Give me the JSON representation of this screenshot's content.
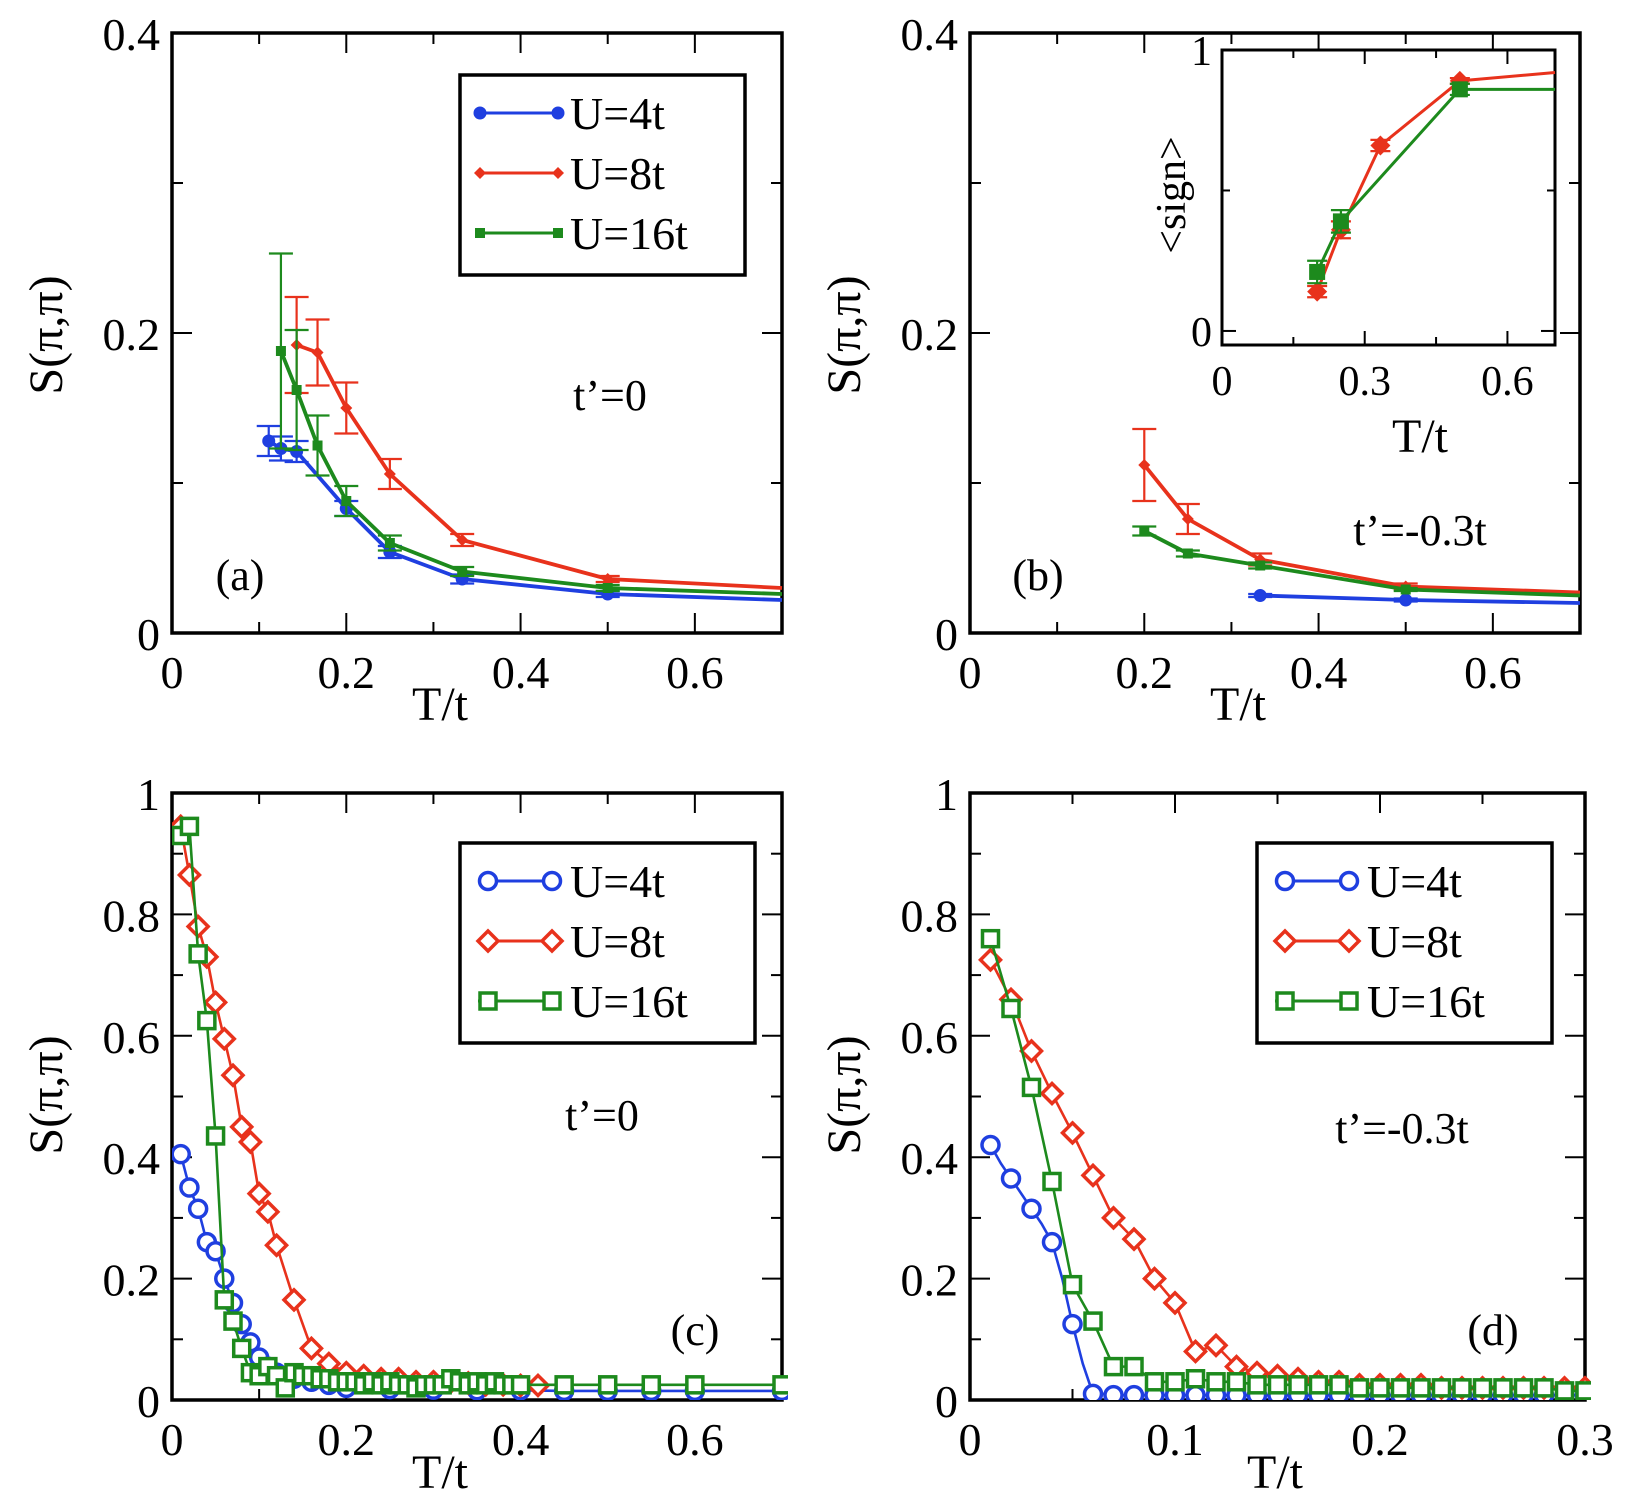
{
  "colors": {
    "blue": "#1f3fe0",
    "red": "#e8321c",
    "green": "#1d8a1d",
    "axis": "#000000"
  },
  "chart_data": [
    {
      "id": "a",
      "type": "line",
      "panel_label": "(a)",
      "annotation": "t’=0",
      "xlabel": "T/t",
      "ylabel": "S(π,π)",
      "xlim": [
        0,
        0.7
      ],
      "ylim": [
        0,
        0.4
      ],
      "xticks": [
        0,
        0.2,
        0.4,
        0.6
      ],
      "xtick_labels": [
        "0",
        "0.2",
        "0.4",
        "0.6"
      ],
      "yticks": [
        0,
        0.2,
        0.4
      ],
      "ytick_labels": [
        "0",
        "0.2",
        "0.4"
      ],
      "yminor": [
        0.1,
        0.3
      ],
      "xminor": [
        0.1,
        0.3,
        0.5
      ],
      "legend": true,
      "series": [
        {
          "name": "U=4t",
          "color": "blue",
          "marker": "dot",
          "x": [
            0.111,
            0.125,
            0.143,
            0.2,
            0.25,
            0.333,
            0.5,
            0.7
          ],
          "y": [
            0.128,
            0.123,
            0.121,
            0.083,
            0.054,
            0.036,
            0.026,
            0.022
          ],
          "err": [
            0.01,
            0.008,
            0.007,
            0.005,
            0.004,
            0.003,
            0.002,
            0
          ]
        },
        {
          "name": "U=8t",
          "color": "red",
          "marker": "diamond-small",
          "x": [
            0.143,
            0.167,
            0.2,
            0.25,
            0.333,
            0.5,
            0.7
          ],
          "y": [
            0.192,
            0.187,
            0.15,
            0.106,
            0.062,
            0.036,
            0.03
          ],
          "err": [
            0.032,
            0.022,
            0.017,
            0.01,
            0.004,
            0.002,
            0
          ]
        },
        {
          "name": "U=16t",
          "color": "green",
          "marker": "square-small",
          "x": [
            0.125,
            0.143,
            0.167,
            0.2,
            0.25,
            0.333,
            0.5,
            0.7
          ],
          "y": [
            0.188,
            0.162,
            0.125,
            0.088,
            0.06,
            0.041,
            0.03,
            0.026
          ],
          "err": [
            0.065,
            0.04,
            0.02,
            0.01,
            0.005,
            0.003,
            0.002,
            0
          ]
        }
      ]
    },
    {
      "id": "b",
      "type": "line",
      "panel_label": "(b)",
      "annotation": "t’=-0.3t",
      "xlabel": "T/t",
      "ylabel": "S(π,π)",
      "xlim": [
        0,
        0.7
      ],
      "ylim": [
        0,
        0.4
      ],
      "xticks": [
        0,
        0.2,
        0.4,
        0.6
      ],
      "xtick_labels": [
        "0",
        "0.2",
        "0.4",
        "0.6"
      ],
      "yticks": [
        0,
        0.2,
        0.4
      ],
      "ytick_labels": [
        "0",
        "0.2",
        "0.4"
      ],
      "yminor": [
        0.1,
        0.3
      ],
      "xminor": [
        0.1,
        0.3,
        0.5
      ],
      "legend": false,
      "series": [
        {
          "name": "U=4t",
          "color": "blue",
          "marker": "dot",
          "x": [
            0.333,
            0.5,
            0.7
          ],
          "y": [
            0.025,
            0.022,
            0.02
          ],
          "err": [
            0.001,
            0.001,
            0
          ]
        },
        {
          "name": "U=8t",
          "color": "red",
          "marker": "diamond-small",
          "x": [
            0.2,
            0.25,
            0.333,
            0.5,
            0.7
          ],
          "y": [
            0.112,
            0.076,
            0.049,
            0.031,
            0.027
          ],
          "err": [
            0.024,
            0.01,
            0.004,
            0.002,
            0
          ]
        },
        {
          "name": "U=16t",
          "color": "green",
          "marker": "square-small",
          "x": [
            0.2,
            0.25,
            0.333,
            0.5,
            0.7
          ],
          "y": [
            0.068,
            0.053,
            0.045,
            0.029,
            0.025
          ],
          "err": [
            0.003,
            0.002,
            0.002,
            0.001,
            0
          ]
        }
      ],
      "inset": {
        "xlabel": "T/t",
        "ylabel": "<sign>",
        "xlim": [
          0,
          0.7
        ],
        "ylim": [
          -0.05,
          1.0
        ],
        "xticks": [
          0,
          0.3,
          0.6
        ],
        "xtick_labels": [
          "0",
          "0.3",
          "0.6"
        ],
        "yticks": [
          0,
          1
        ],
        "ytick_labels": [
          "0",
          "1"
        ],
        "yminor": [
          0.5
        ],
        "xminor": [
          0.15,
          0.45
        ],
        "series": [
          {
            "name": "U=8t",
            "color": "red",
            "marker": "diamond",
            "x": [
              0.2,
              0.25,
              0.333,
              0.5,
              0.7
            ],
            "y": [
              0.14,
              0.36,
              0.66,
              0.89,
              0.92
            ],
            "err": [
              0.02,
              0.03,
              0.02,
              0.01,
              0
            ]
          },
          {
            "name": "U=16t",
            "color": "green",
            "marker": "square",
            "x": [
              0.2,
              0.25,
              0.5,
              0.7
            ],
            "y": [
              0.21,
              0.39,
              0.86,
              0.86
            ],
            "err": [
              0.04,
              0.04,
              0.02,
              0
            ]
          }
        ]
      }
    },
    {
      "id": "c",
      "type": "line",
      "panel_label": "(c)",
      "annotation": "t’=0",
      "xlabel": "T/t",
      "ylabel": "S(π,π)",
      "xlim": [
        0,
        0.7
      ],
      "ylim": [
        0,
        1
      ],
      "xticks": [
        0,
        0.2,
        0.4,
        0.6
      ],
      "xtick_labels": [
        "0",
        "0.2",
        "0.4",
        "0.6"
      ],
      "yticks": [
        0,
        0.2,
        0.4,
        0.6,
        0.8,
        1
      ],
      "ytick_labels": [
        "0",
        "0.2",
        "0.4",
        "0.6",
        "0.8",
        "1"
      ],
      "yminor": [
        0.1,
        0.3,
        0.5,
        0.7,
        0.9
      ],
      "xminor": [
        0.1,
        0.3,
        0.5
      ],
      "legend": true,
      "series": [
        {
          "name": "U=4t",
          "color": "blue",
          "marker": "circle-open",
          "x": [
            0.01,
            0.02,
            0.03,
            0.04,
            0.05,
            0.06,
            0.07,
            0.08,
            0.09,
            0.1,
            0.11,
            0.12,
            0.14,
            0.16,
            0.18,
            0.2,
            0.25,
            0.3,
            0.35,
            0.4,
            0.45,
            0.5,
            0.55,
            0.6,
            0.7
          ],
          "y": [
            0.405,
            0.35,
            0.315,
            0.26,
            0.245,
            0.2,
            0.16,
            0.125,
            0.095,
            0.07,
            0.055,
            0.045,
            0.035,
            0.03,
            0.025,
            0.02,
            0.018,
            0.017,
            0.016,
            0.016,
            0.015,
            0.015,
            0.015,
            0.015,
            0.015
          ]
        },
        {
          "name": "U=8t",
          "color": "red",
          "marker": "diamond-open",
          "x": [
            0.01,
            0.02,
            0.03,
            0.04,
            0.05,
            0.06,
            0.07,
            0.08,
            0.09,
            0.1,
            0.11,
            0.12,
            0.14,
            0.16,
            0.18,
            0.2,
            0.22,
            0.24,
            0.26,
            0.28,
            0.3,
            0.32,
            0.34,
            0.36,
            0.38,
            0.4,
            0.42
          ],
          "y": [
            0.945,
            0.865,
            0.78,
            0.73,
            0.655,
            0.595,
            0.535,
            0.45,
            0.425,
            0.34,
            0.31,
            0.255,
            0.165,
            0.085,
            0.06,
            0.045,
            0.04,
            0.035,
            0.035,
            0.03,
            0.03,
            0.03,
            0.028,
            0.025,
            0.025,
            0.024,
            0.024
          ]
        },
        {
          "name": "U=16t",
          "color": "green",
          "marker": "square-open",
          "x": [
            0.01,
            0.02,
            0.03,
            0.04,
            0.05,
            0.06,
            0.07,
            0.08,
            0.09,
            0.1,
            0.11,
            0.12,
            0.13,
            0.14,
            0.15,
            0.16,
            0.17,
            0.18,
            0.19,
            0.2,
            0.21,
            0.22,
            0.23,
            0.24,
            0.25,
            0.26,
            0.27,
            0.28,
            0.29,
            0.3,
            0.31,
            0.32,
            0.33,
            0.34,
            0.35,
            0.36,
            0.37,
            0.38,
            0.39,
            0.4,
            0.45,
            0.5,
            0.55,
            0.6,
            0.7
          ],
          "y": [
            0.93,
            0.945,
            0.735,
            0.625,
            0.435,
            0.165,
            0.13,
            0.085,
            0.045,
            0.04,
            0.055,
            0.04,
            0.02,
            0.045,
            0.04,
            0.04,
            0.035,
            0.035,
            0.03,
            0.03,
            0.03,
            0.025,
            0.03,
            0.025,
            0.03,
            0.025,
            0.025,
            0.02,
            0.025,
            0.025,
            0.025,
            0.035,
            0.03,
            0.025,
            0.03,
            0.025,
            0.03,
            0.025,
            0.025,
            0.025,
            0.025,
            0.025,
            0.025,
            0.025,
            0.025
          ]
        }
      ]
    },
    {
      "id": "d",
      "type": "line",
      "panel_label": "(d)",
      "annotation": "t’=-0.3t",
      "xlabel": "T/t",
      "ylabel": "S(π,π)",
      "xlim": [
        0,
        0.3
      ],
      "ylim": [
        0,
        1
      ],
      "xticks": [
        0,
        0.1,
        0.2,
        0.3
      ],
      "xtick_labels": [
        "0",
        "0.1",
        "0.2",
        "0.3"
      ],
      "yticks": [
        0,
        0.2,
        0.4,
        0.6,
        0.8,
        1
      ],
      "ytick_labels": [
        "0",
        "0.2",
        "0.4",
        "0.6",
        "0.8",
        "1"
      ],
      "yminor": [
        0.1,
        0.3,
        0.5,
        0.7,
        0.9
      ],
      "xminor": [
        0.05,
        0.15,
        0.25
      ],
      "legend": true,
      "series": [
        {
          "name": "U=4t",
          "color": "blue",
          "marker": "circle-open",
          "x": [
            0.01,
            0.015,
            0.02,
            0.025,
            0.03,
            0.035,
            0.04,
            0.045,
            0.05,
            0.055,
            0.06,
            0.065,
            0.07,
            0.075,
            0.08,
            0.085,
            0.09,
            0.095,
            0.1,
            0.105,
            0.11,
            0.115,
            0.12,
            0.125,
            0.13,
            0.135,
            0.14,
            0.145,
            0.15,
            0.155,
            0.16,
            0.165,
            0.17,
            0.175,
            0.18,
            0.185,
            0.19,
            0.195,
            0.2,
            0.205,
            0.21,
            0.215,
            0.22,
            0.225,
            0.23,
            0.235,
            0.24,
            0.245,
            0.25,
            0.255,
            0.26,
            0.265,
            0.27,
            0.275,
            0.28,
            0.285,
            0.29,
            0.295,
            0.3
          ],
          "y": [
            0.42,
            0.39,
            0.365,
            0.34,
            0.315,
            0.29,
            0.26,
            0.2,
            0.125,
            0.06,
            0.01,
            0.01,
            0.008,
            0.008,
            0.008,
            0.008,
            0.008,
            0.008,
            0.008,
            0.008,
            0.008,
            0.008,
            0.008,
            0.008,
            0.008,
            0.008,
            0.008,
            0.008,
            0.008,
            0.008,
            0.008,
            0.008,
            0.008,
            0.008,
            0.008,
            0.008,
            0.008,
            0.008,
            0.008,
            0.008,
            0.008,
            0.008,
            0.008,
            0.008,
            0.008,
            0.008,
            0.008,
            0.008,
            0.008,
            0.008,
            0.008,
            0.008,
            0.008,
            0.008,
            0.008,
            0.008,
            0.008,
            0.008,
            0.008
          ],
          "markers_at": [
            0.01,
            0.02,
            0.03,
            0.04,
            0.05,
            0.06,
            0.07,
            0.08,
            0.09,
            0.1,
            0.11,
            0.12,
            0.13,
            0.14,
            0.15,
            0.16,
            0.17,
            0.18,
            0.19,
            0.2,
            0.21,
            0.22,
            0.23,
            0.24,
            0.25,
            0.26,
            0.27,
            0.28,
            0.29,
            0.3
          ]
        },
        {
          "name": "U=8t",
          "color": "red",
          "marker": "diamond-open",
          "x": [
            0.01,
            0.02,
            0.03,
            0.04,
            0.05,
            0.06,
            0.07,
            0.08,
            0.09,
            0.1,
            0.11,
            0.12,
            0.13,
            0.14,
            0.15,
            0.16,
            0.17,
            0.18,
            0.19,
            0.2,
            0.21,
            0.22,
            0.23,
            0.24,
            0.25,
            0.26,
            0.27,
            0.28,
            0.29,
            0.3
          ],
          "y": [
            0.725,
            0.66,
            0.575,
            0.505,
            0.44,
            0.37,
            0.3,
            0.265,
            0.2,
            0.16,
            0.08,
            0.09,
            0.055,
            0.045,
            0.04,
            0.035,
            0.03,
            0.03,
            0.025,
            0.025,
            0.025,
            0.025,
            0.02,
            0.02,
            0.02,
            0.02,
            0.02,
            0.02,
            0.02,
            0.02
          ]
        },
        {
          "name": "U=16t",
          "color": "green",
          "marker": "square-open",
          "x": [
            0.01,
            0.02,
            0.03,
            0.04,
            0.05,
            0.06,
            0.07,
            0.08,
            0.09,
            0.1,
            0.11,
            0.12,
            0.13,
            0.14,
            0.15,
            0.16,
            0.17,
            0.18,
            0.19,
            0.2,
            0.21,
            0.22,
            0.23,
            0.24,
            0.25,
            0.26,
            0.27,
            0.28,
            0.29,
            0.3
          ],
          "y": [
            0.76,
            0.645,
            0.515,
            0.36,
            0.19,
            0.13,
            0.055,
            0.055,
            0.03,
            0.03,
            0.035,
            0.03,
            0.03,
            0.025,
            0.025,
            0.025,
            0.025,
            0.025,
            0.02,
            0.02,
            0.02,
            0.02,
            0.02,
            0.02,
            0.02,
            0.02,
            0.02,
            0.02,
            0.015,
            0.015
          ]
        }
      ]
    }
  ]
}
